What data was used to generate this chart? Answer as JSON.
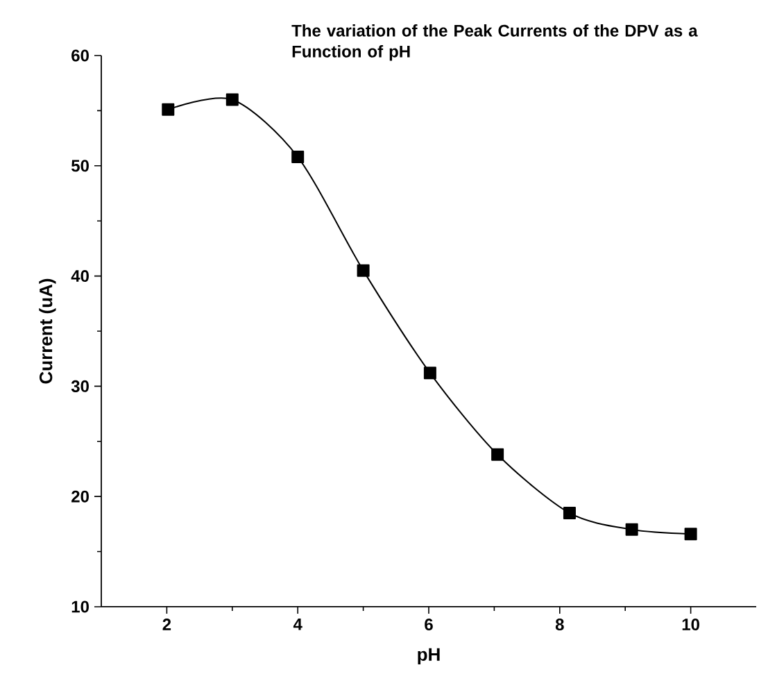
{
  "chart_data": {
    "type": "line",
    "title": "The variation of the Peak Currents of the DPV as a Function of pH",
    "xlabel": "pH",
    "ylabel": "Current (uA)",
    "x": [
      2.02,
      3.0,
      4.0,
      5.0,
      6.02,
      7.05,
      8.15,
      9.1,
      10.0
    ],
    "series": [
      {
        "color": "#000000",
        "values": [
          55.1,
          56.0,
          50.8,
          40.5,
          31.2,
          23.8,
          18.5,
          17.0,
          16.6
        ]
      }
    ],
    "marker": "square",
    "line_style": "solid",
    "xlim": [
      1,
      11
    ],
    "xticks": [
      2,
      4,
      6,
      8,
      10
    ],
    "ylim": [
      10,
      60
    ],
    "yticks": [
      10,
      20,
      30,
      40,
      50,
      60
    ]
  }
}
